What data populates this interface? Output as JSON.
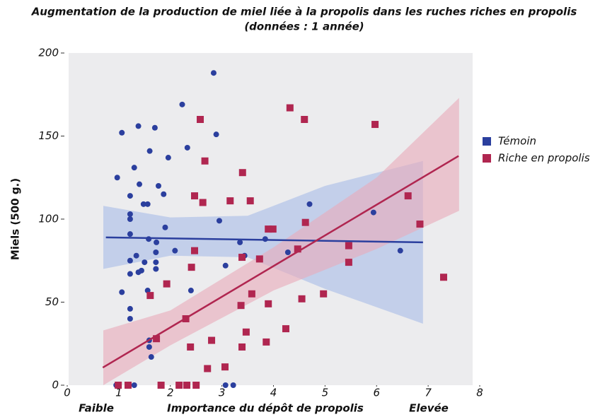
{
  "chart_data": {
    "type": "scatter",
    "title": "Augmentation de la production de miel liée à la propolis dans les ruches riches en propolis",
    "subtitle": "(données : 1 année)",
    "xlabel": "Importance du dépôt de propolis",
    "xlabel_low": "Faible",
    "xlabel_high": "Elevée",
    "ylabel": "Miels  (500 g.)",
    "xlim": [
      0,
      8
    ],
    "xticks": [
      0,
      1,
      2,
      3,
      4,
      5,
      6,
      7,
      8
    ],
    "ylim": [
      0,
      200
    ],
    "yticks": [
      0,
      50,
      100,
      150,
      200
    ],
    "legend": "right",
    "series": [
      {
        "name": "Témoin",
        "color": "#2b3f9e",
        "marker": "circle",
        "band_color": "#a8bce8",
        "x": [
          0.97,
          1.06,
          1.3,
          1.38,
          1.4,
          1.22,
          1.56,
          1.48,
          1.22,
          1.22,
          1.22,
          1.6,
          1.7,
          1.77,
          1.87,
          1.96,
          2.23,
          2.33,
          2.84,
          2.89,
          2.95,
          1.58,
          1.73,
          1.72,
          1.9,
          1.72,
          1.72,
          1.5,
          1.44,
          1.38,
          1.34,
          1.22,
          1.22,
          1.06,
          1.22,
          1.22,
          1.56,
          1.59,
          1.59,
          1.63,
          2.4,
          2.09,
          3.07,
          3.35,
          3.44,
          3.84,
          4.28,
          4.7,
          5.94,
          6.46,
          0.95,
          1.3,
          3.07,
          3.22
        ],
        "values": [
          125,
          152,
          131,
          156,
          121,
          114,
          109,
          109,
          103,
          100,
          91,
          141,
          155,
          120,
          115,
          137,
          169,
          143,
          188,
          151,
          99,
          88,
          86,
          80,
          95,
          74,
          70,
          74,
          69,
          68,
          78,
          75,
          67,
          56,
          46,
          40,
          57,
          27,
          23,
          17,
          57,
          81,
          72,
          86,
          78,
          88,
          80,
          109,
          104,
          81,
          0,
          0,
          0,
          0
        ],
        "fit": {
          "x": [
            0.75,
            6.9
          ],
          "values": [
            89,
            86
          ]
        },
        "band": {
          "x": [
            0.7,
            2,
            3.5,
            5,
            6.9
          ],
          "lower": [
            70,
            78,
            77,
            58,
            37
          ],
          "upper": [
            108,
            101,
            102,
            120,
            135
          ]
        }
      },
      {
        "name": "Riche en propolis",
        "color": "#b02650",
        "marker": "square",
        "band_color": "#eaaab9",
        "x": [
          2.58,
          2.67,
          2.47,
          2.63,
          3.16,
          3.4,
          3.55,
          4.32,
          4.6,
          5.97,
          6.61,
          6.84,
          7.3,
          3.9,
          3.99,
          4.62,
          4.47,
          5.46,
          5.46,
          4.97,
          4.55,
          3.39,
          3.73,
          3.58,
          3.37,
          3.9,
          3.47,
          3.39,
          3.86,
          4.24,
          2.47,
          2.41,
          1.93,
          1.61,
          1.73,
          2.3,
          2.39,
          2.8,
          2.72,
          3.06,
          0.99,
          1.18,
          1.82,
          2.17,
          2.32,
          2.5
        ],
        "values": [
          160,
          135,
          114,
          110,
          111,
          128,
          111,
          167,
          160,
          157,
          114,
          97,
          65,
          94,
          94,
          98,
          82,
          84,
          74,
          55,
          52,
          77,
          76,
          55,
          48,
          49,
          32,
          23,
          26,
          34,
          81,
          71,
          61,
          54,
          28,
          40,
          23,
          27,
          10,
          11,
          0,
          0,
          0,
          0,
          0,
          0
        ],
        "fit": {
          "x": [
            0.69,
            7.59
          ],
          "values": [
            10.6,
            138
          ]
        },
        "band": {
          "x": [
            0.7,
            2,
            4,
            6,
            7.6
          ],
          "lower": [
            0,
            24,
            57,
            82,
            105
          ],
          "upper": [
            33,
            45,
            83,
            125,
            173
          ]
        }
      }
    ]
  }
}
